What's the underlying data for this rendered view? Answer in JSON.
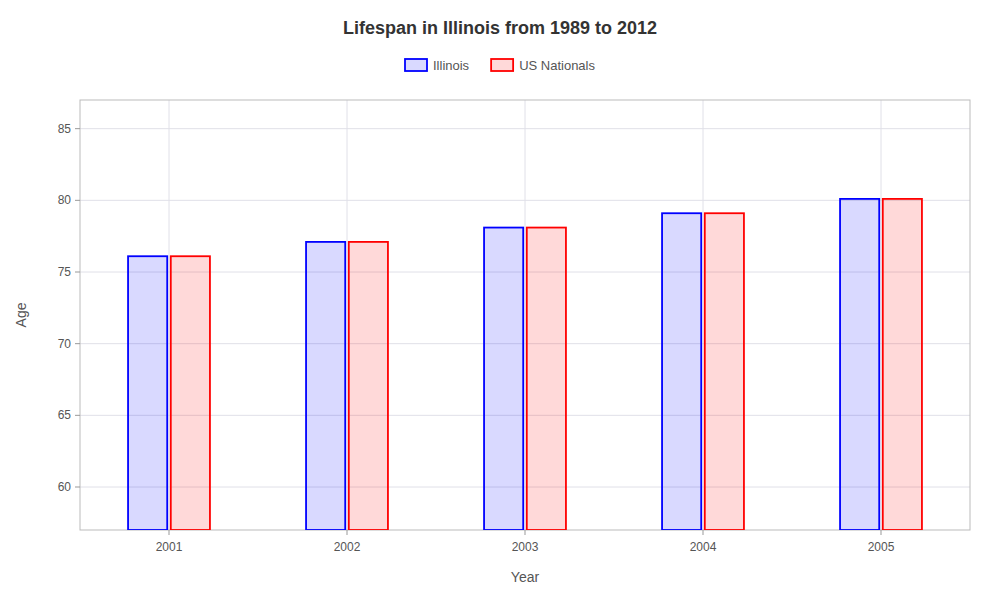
{
  "chart_data": {
    "type": "bar",
    "title": "Lifespan in Illinois from 1989 to 2012",
    "xlabel": "Year",
    "ylabel": "Age",
    "categories": [
      "2001",
      "2002",
      "2003",
      "2004",
      "2005"
    ],
    "series": [
      {
        "name": "Illinois",
        "color": "#0000ff",
        "values": [
          76.1,
          77.1,
          78.1,
          79.1,
          80.1
        ]
      },
      {
        "name": "US Nationals",
        "color": "#ff0000",
        "values": [
          76.1,
          77.1,
          78.1,
          79.1,
          80.1
        ]
      }
    ],
    "ylim": [
      57,
      87
    ],
    "yticks": [
      60,
      65,
      70,
      75,
      80,
      85
    ],
    "grid": true,
    "legend": "top"
  }
}
